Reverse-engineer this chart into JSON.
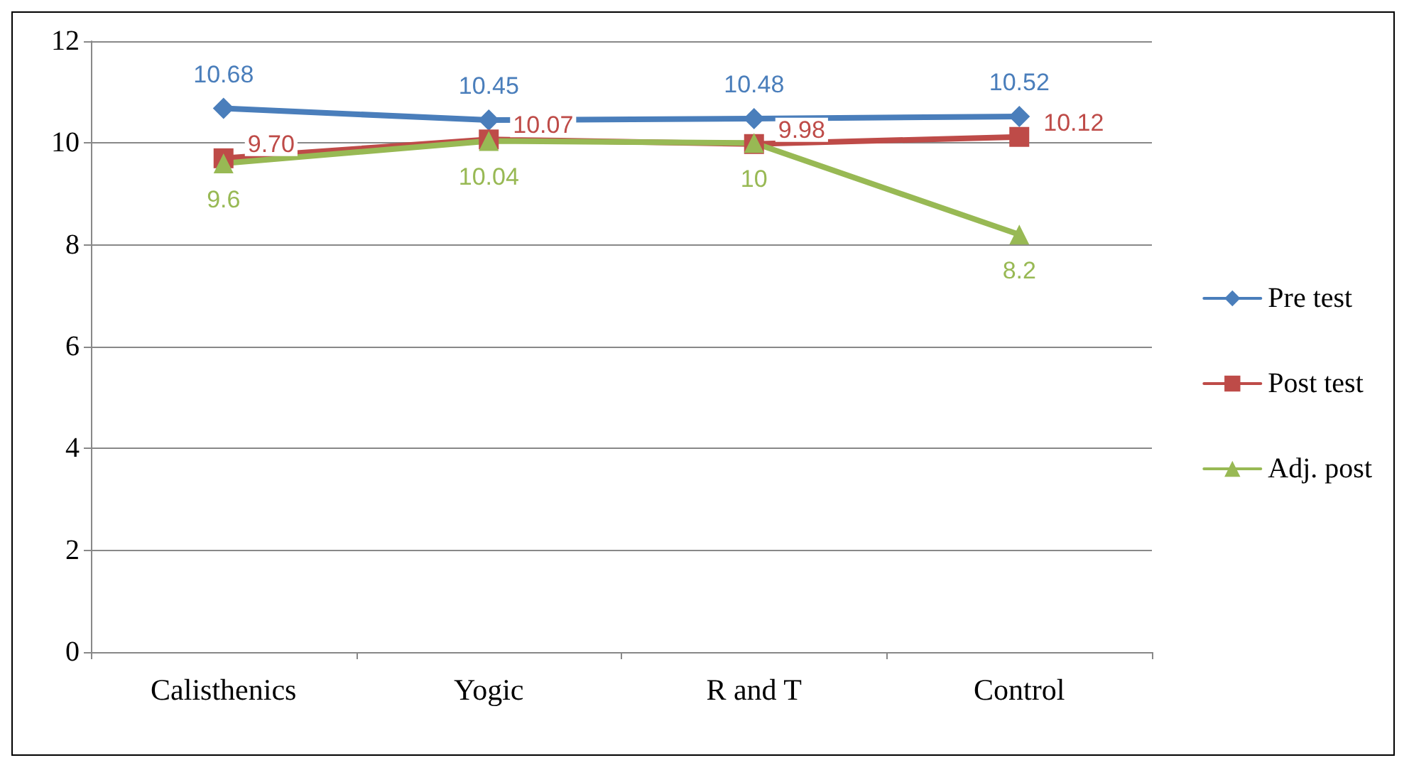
{
  "chart_data": {
    "type": "line",
    "categories": [
      "Calisthenics",
      "Yogic",
      "R and T",
      "Control"
    ],
    "series": [
      {
        "name": "Pre test",
        "color": "#4a7ebb",
        "marker": "diamond",
        "values": [
          10.68,
          10.45,
          10.48,
          10.52
        ],
        "value_labels": [
          "10.68",
          "10.45",
          "10.48",
          "10.52"
        ]
      },
      {
        "name": "Post test",
        "color": "#be4b48",
        "marker": "square",
        "values": [
          9.7,
          10.07,
          9.98,
          10.12
        ],
        "value_labels": [
          "9.70",
          "10.07",
          "9.98",
          "10.12"
        ]
      },
      {
        "name": "Adj. post",
        "color": "#98b954",
        "marker": "triangle",
        "values": [
          9.6,
          10.04,
          10,
          8.2
        ],
        "value_labels": [
          "9.6",
          "10.04",
          "10",
          "8.2"
        ]
      }
    ],
    "ylim": [
      0,
      12
    ],
    "yticks": [
      0,
      2,
      4,
      6,
      8,
      10,
      12
    ],
    "grid": "y",
    "legend": "right"
  }
}
